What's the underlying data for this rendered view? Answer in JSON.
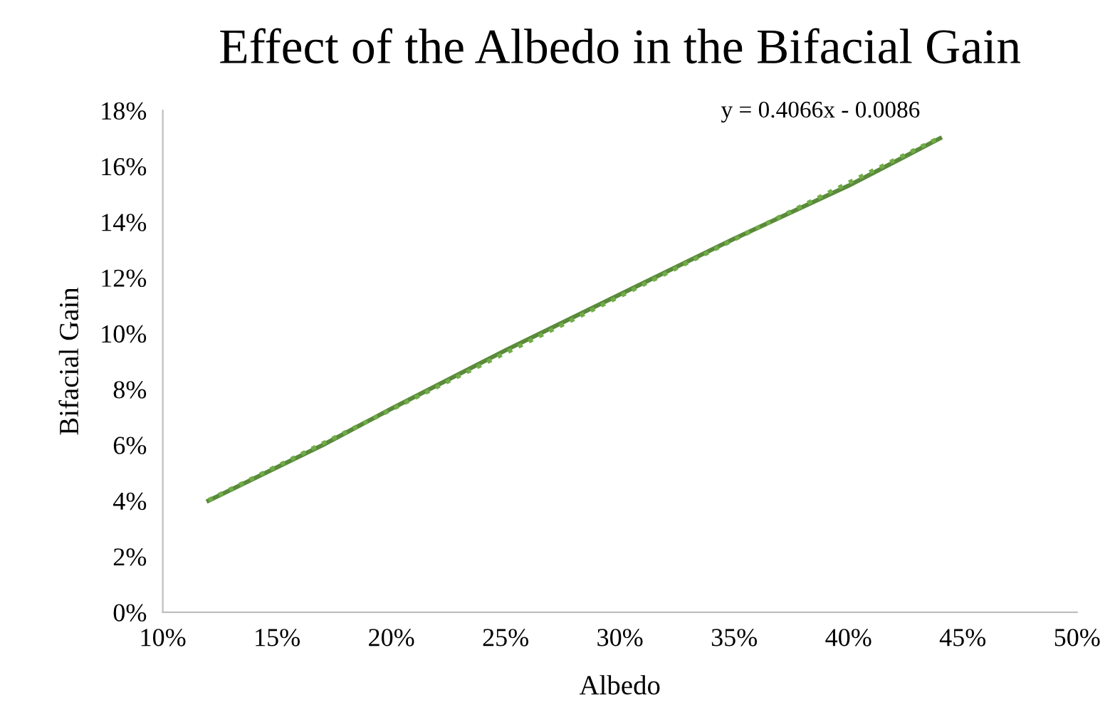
{
  "chart_data": {
    "type": "line",
    "title": "Effect of the Albedo in the Bifacial Gain",
    "xlabel": "Albedo",
    "ylabel": "Bifacial Gain",
    "annotations": [
      {
        "text": "y = 0.4066x - 0.0086",
        "x": 0.44,
        "y": 0.17
      }
    ],
    "series": [
      {
        "color": "#5a8a3a",
        "x": [
          0.12,
          0.15,
          0.17,
          0.2,
          0.25,
          0.3,
          0.35,
          0.4,
          0.44
        ],
        "values": [
          0.04,
          0.052,
          0.06,
          0.073,
          0.094,
          0.114,
          0.134,
          0.153,
          0.17
        ],
        "line_style": "solid"
      },
      {
        "color": "#70ad47",
        "x": [
          0.12,
          0.44
        ],
        "values": [
          0.0402,
          0.1703
        ],
        "line_style": "dotted"
      }
    ],
    "xlim": [
      0.1,
      0.5
    ],
    "xticks": [
      {
        "value": 0.1,
        "label": "10%"
      },
      {
        "value": 0.15,
        "label": "15%"
      },
      {
        "value": 0.2,
        "label": "20%"
      },
      {
        "value": 0.25,
        "label": "25%"
      },
      {
        "value": 0.3,
        "label": "30%"
      },
      {
        "value": 0.35,
        "label": "35%"
      },
      {
        "value": 0.4,
        "label": "40%"
      },
      {
        "value": 0.45,
        "label": "45%"
      },
      {
        "value": 0.5,
        "label": "50%"
      }
    ],
    "ylim": [
      0,
      0.18
    ],
    "yticks": [
      {
        "value": 0,
        "label": "0%"
      },
      {
        "value": 0.02,
        "label": "2%"
      },
      {
        "value": 0.04,
        "label": "4%"
      },
      {
        "value": 0.06,
        "label": "6%"
      },
      {
        "value": 0.08,
        "label": "8%"
      },
      {
        "value": 0.1,
        "label": "10%"
      },
      {
        "value": 0.12,
        "label": "12%"
      },
      {
        "value": 0.14,
        "label": "14%"
      },
      {
        "value": 0.16,
        "label": "16%"
      },
      {
        "value": 0.18,
        "label": "18%"
      }
    ],
    "grid": false,
    "legend": false
  }
}
